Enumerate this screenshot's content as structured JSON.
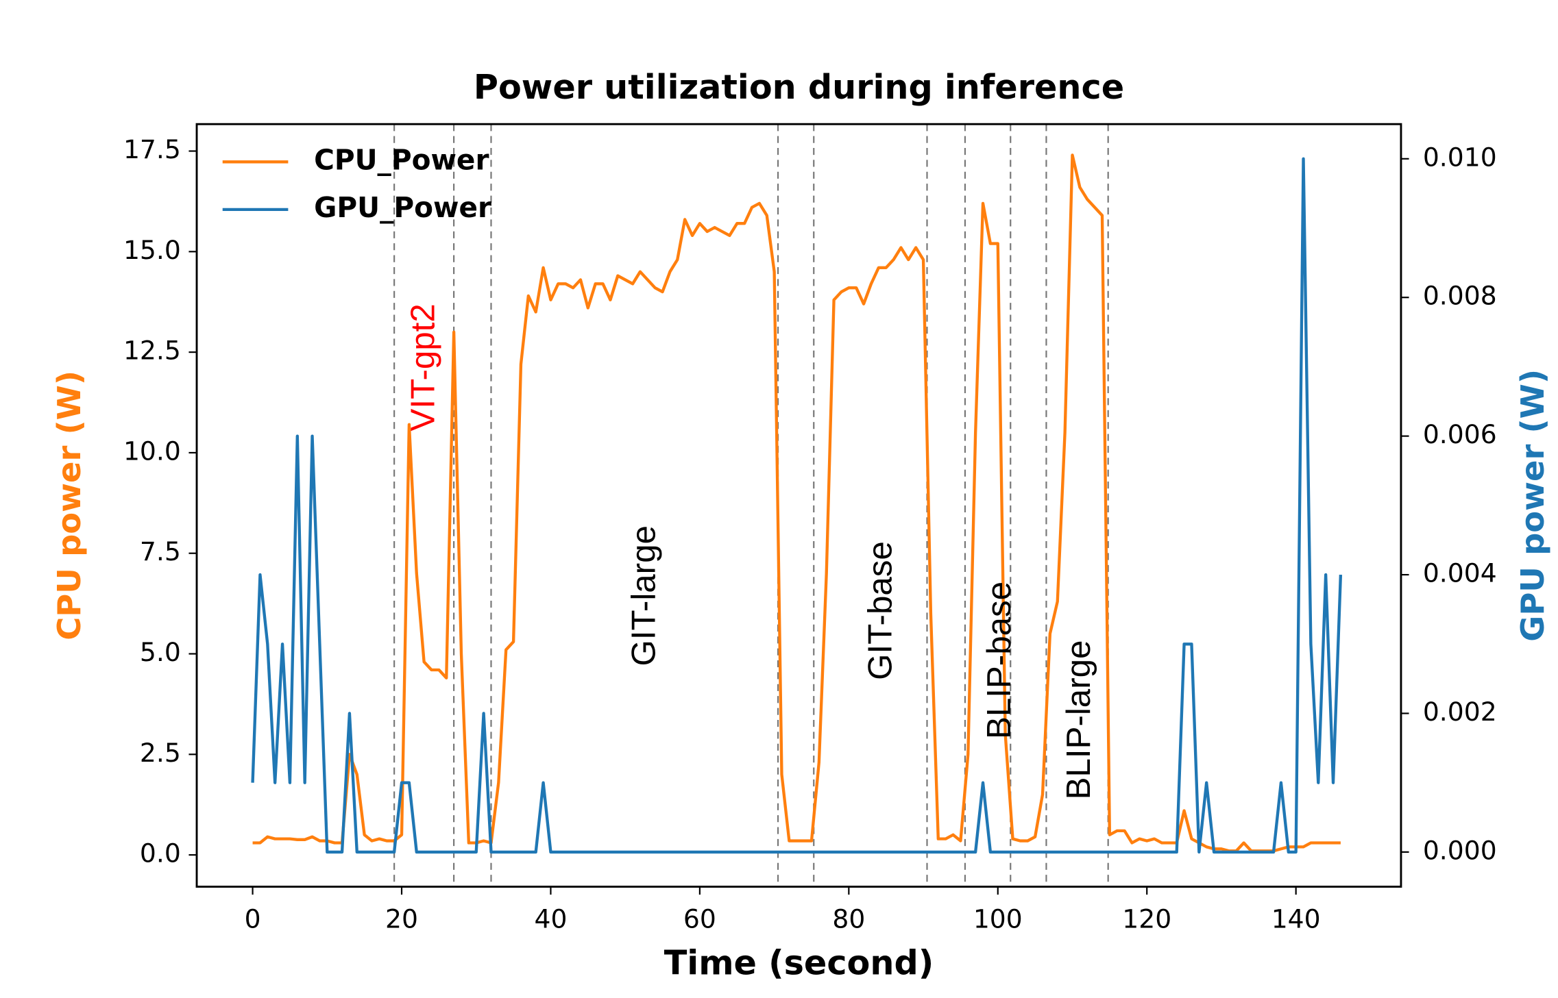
{
  "chart_data": {
    "type": "line",
    "title": "Power utilization during inference",
    "xlabel": "Time (second)",
    "ylabel": "CPU power (W)",
    "y2label": "GPU power (W)",
    "legend": "upper left",
    "x": [
      0,
      1,
      2,
      3,
      4,
      5,
      6,
      7,
      8,
      9,
      10,
      11,
      12,
      13,
      14,
      15,
      16,
      17,
      18,
      19,
      20,
      21,
      22,
      23,
      24,
      25,
      26,
      27,
      28,
      29,
      30,
      31,
      32,
      33,
      34,
      35,
      36,
      37,
      38,
      39,
      40,
      41,
      42,
      43,
      44,
      45,
      46,
      47,
      48,
      49,
      50,
      51,
      52,
      53,
      54,
      55,
      56,
      57,
      58,
      59,
      60,
      61,
      62,
      63,
      64,
      65,
      66,
      67,
      68,
      69,
      70,
      71,
      72,
      73,
      74,
      75,
      76,
      77,
      78,
      79,
      80,
      81,
      82,
      83,
      84,
      85,
      86,
      87,
      88,
      89,
      90,
      91,
      92,
      93,
      94,
      95,
      96,
      97,
      98,
      99,
      100,
      101,
      102,
      103,
      104,
      105,
      106,
      107,
      108,
      109,
      110,
      111,
      112,
      113,
      114,
      115,
      116,
      117,
      118,
      119,
      120,
      121,
      122,
      123,
      124,
      125,
      126,
      127,
      128,
      129,
      130,
      131,
      132,
      133,
      134,
      135,
      136,
      137,
      138,
      139,
      140,
      141,
      142,
      143,
      144,
      145,
      146
    ],
    "series": [
      {
        "name": "CPU_Power",
        "color": "#ff7f0e",
        "axis": "y",
        "values": [
          0.3,
          0.3,
          0.45,
          0.4,
          0.4,
          0.4,
          0.38,
          0.38,
          0.45,
          0.35,
          0.35,
          0.3,
          0.3,
          2.5,
          2.0,
          0.5,
          0.35,
          0.4,
          0.35,
          0.35,
          0.5,
          10.7,
          7.0,
          4.8,
          4.6,
          4.6,
          4.4,
          13.0,
          5.0,
          0.3,
          0.3,
          0.35,
          0.3,
          1.8,
          5.1,
          5.3,
          12.2,
          13.9,
          13.5,
          14.6,
          13.8,
          14.2,
          14.2,
          14.1,
          14.3,
          13.6,
          14.2,
          14.2,
          13.8,
          14.4,
          14.3,
          14.2,
          14.5,
          14.3,
          14.1,
          14.0,
          14.5,
          14.8,
          15.8,
          15.4,
          15.7,
          15.5,
          15.6,
          15.5,
          15.4,
          15.7,
          15.7,
          16.1,
          16.2,
          15.9,
          14.5,
          2.0,
          0.35,
          0.35,
          0.35,
          0.35,
          2.3,
          7.0,
          13.8,
          14.0,
          14.1,
          14.1,
          13.7,
          14.2,
          14.6,
          14.6,
          14.8,
          15.1,
          14.8,
          15.1,
          14.8,
          6.0,
          0.4,
          0.4,
          0.5,
          0.35,
          2.5,
          10.5,
          16.2,
          15.2,
          15.2,
          3.0,
          0.4,
          0.35,
          0.35,
          0.45,
          1.5,
          5.5,
          6.3,
          10.5,
          17.4,
          16.6,
          16.3,
          16.1,
          15.9,
          0.5,
          0.6,
          0.6,
          0.3,
          0.4,
          0.35,
          0.4,
          0.3,
          0.3,
          0.3,
          1.1,
          0.4,
          0.3,
          0.2,
          0.15,
          0.15,
          0.1,
          0.1,
          0.3,
          0.1,
          0.1,
          0.1,
          0.1,
          0.15,
          0.2,
          0.2,
          0.2,
          0.3,
          0.3,
          0.3,
          0.3,
          0.3
        ]
      },
      {
        "name": "GPU_Power",
        "color": "#1f77b4",
        "axis": "y2",
        "values": [
          0.001,
          0.004,
          0.003,
          0.001,
          0.003,
          0.001,
          0.006,
          0.001,
          0.006,
          0.003,
          0,
          0,
          0,
          0.002,
          0,
          0,
          0,
          0,
          0,
          0,
          0.001,
          0.001,
          0,
          0,
          0,
          0,
          0,
          0,
          0,
          0,
          0,
          0.002,
          0,
          0,
          0,
          0,
          0,
          0,
          0,
          0.001,
          0,
          0,
          0,
          0,
          0,
          0,
          0,
          0,
          0,
          0,
          0,
          0,
          0,
          0,
          0,
          0,
          0,
          0,
          0,
          0,
          0,
          0,
          0,
          0,
          0,
          0,
          0,
          0,
          0,
          0,
          0,
          0,
          0,
          0,
          0,
          0,
          0,
          0,
          0,
          0,
          0,
          0,
          0,
          0,
          0,
          0,
          0,
          0,
          0,
          0,
          0,
          0,
          0,
          0,
          0,
          0,
          0,
          0,
          0.001,
          0,
          0,
          0,
          0,
          0,
          0,
          0,
          0,
          0,
          0,
          0,
          0,
          0,
          0,
          0,
          0,
          0,
          0,
          0,
          0,
          0,
          0,
          0,
          0,
          0,
          0,
          0.003,
          0.003,
          0,
          0.001,
          0,
          0,
          0,
          0,
          0,
          0,
          0,
          0,
          0,
          0.001,
          0,
          0,
          0.01,
          0.003,
          0.001,
          0.004,
          0.001,
          0.004
        ]
      }
    ],
    "vlines": [
      19,
      27,
      32,
      70.5,
      75.3,
      90.5,
      95.6,
      101.7,
      106.5,
      114.8
    ],
    "annotations": [
      {
        "text": "VIT-gpt2",
        "color": "#ff0000"
      },
      {
        "text": "GIT-large",
        "color": "#000000"
      },
      {
        "text": "GIT-base",
        "color": "#000000"
      },
      {
        "text": "BLIP-base",
        "color": "#000000"
      },
      {
        "text": "BLIP-large",
        "color": "#000000"
      }
    ],
    "xlim": [
      -7.5,
      154.1
    ],
    "xticks": [
      0,
      20,
      40,
      60,
      80,
      100,
      120,
      140
    ],
    "ylim": [
      -0.79,
      18.17
    ],
    "yticks": [
      {
        "value": 0,
        "label": "0.0"
      },
      2.5,
      {
        "value": 5,
        "label": "5.0"
      },
      7.5,
      {
        "value": 10,
        "label": "10.0"
      },
      12.5,
      {
        "value": 15,
        "label": "15.0"
      },
      17.5
    ],
    "y2lim": [
      -0.0005,
      0.0105
    ],
    "y2ticks": [
      {
        "value": 0,
        "label": "0.000"
      },
      {
        "value": 0.002,
        "label": "0.002"
      },
      {
        "value": 0.004,
        "label": "0.004"
      },
      {
        "value": 0.006,
        "label": "0.006"
      },
      {
        "value": 0.008,
        "label": "0.008"
      },
      {
        "value": 0.01,
        "label": "0.010"
      }
    ]
  }
}
